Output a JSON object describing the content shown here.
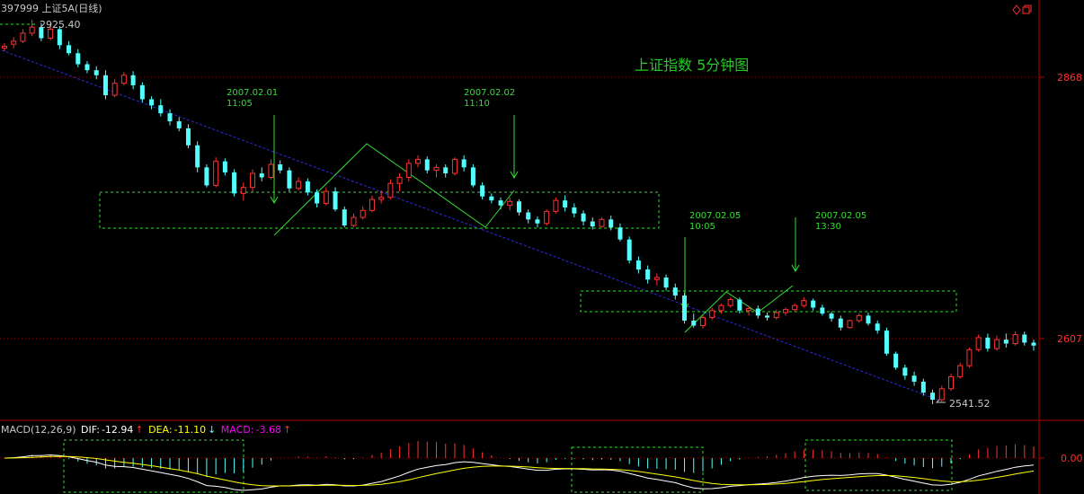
{
  "header": {
    "title": "397999 上证5A(日线)",
    "max_label": "2925.40",
    "min_label": "2541.52",
    "chart_title": "上证指数 5分钟图"
  },
  "price_axis": {
    "top_label": "2868",
    "bottom_label": "2607"
  },
  "macd_axis": {
    "zero_label": "0.00"
  },
  "annotations": [
    {
      "date": "2007.02.01",
      "time": "11:05"
    },
    {
      "date": "2007.02.02",
      "time": "11:10"
    },
    {
      "date": "2007.02.05",
      "time": "10:05"
    },
    {
      "date": "2007.02.05",
      "time": "13:30"
    }
  ],
  "macd": {
    "label": "MACD(12,26,9)",
    "dif_label": "DIF:",
    "dif_value": "-12.94",
    "dea_label": "DEA:",
    "dea_value": "-11.10",
    "macd_label": "MACD:",
    "macd_value": "-3.68"
  },
  "colors": {
    "up": "#ff3232",
    "down": "#54ffff",
    "grid": "#8b0000",
    "ann": "#33dd33",
    "trend": "#2222cc",
    "dif": "#ffffff",
    "dea": "#ffff00",
    "macd_text": "#ff00ff"
  },
  "chart_data": {
    "type": "candlestick",
    "title": "上证指数 5分钟图",
    "ylim": [
      2541.52,
      2925.4
    ],
    "y_ticks": [
      2868,
      2607
    ],
    "series": [
      {
        "values": [
          [
            2897,
            2902,
            2894,
            2899
          ],
          [
            2901,
            2908,
            2897,
            2904
          ],
          [
            2904,
            2916,
            2902,
            2912
          ],
          [
            2912,
            2925.4,
            2909,
            2918
          ],
          [
            2918,
            2922,
            2904,
            2907
          ],
          [
            2907,
            2920,
            2905,
            2916
          ],
          [
            2916,
            2919,
            2896,
            2900
          ],
          [
            2900,
            2904,
            2890,
            2892
          ],
          [
            2892,
            2896,
            2878,
            2881
          ],
          [
            2881,
            2884,
            2872,
            2875
          ],
          [
            2875,
            2879,
            2866,
            2870
          ],
          [
            2870,
            2875,
            2846,
            2850
          ],
          [
            2850,
            2866,
            2848,
            2862
          ],
          [
            2862,
            2873,
            2860,
            2870
          ],
          [
            2870,
            2874,
            2856,
            2860
          ],
          [
            2860,
            2863,
            2843,
            2846
          ],
          [
            2846,
            2849,
            2836,
            2840
          ],
          [
            2840,
            2846,
            2829,
            2832
          ],
          [
            2832,
            2836,
            2820,
            2824
          ],
          [
            2824,
            2828,
            2814,
            2817
          ],
          [
            2817,
            2821,
            2797,
            2800
          ],
          [
            2800,
            2804,
            2773,
            2778
          ],
          [
            2778,
            2781,
            2758,
            2760
          ],
          [
            2760,
            2788,
            2758,
            2784
          ],
          [
            2784,
            2787,
            2770,
            2773
          ],
          [
            2773,
            2776,
            2749,
            2752
          ],
          [
            2752,
            2763,
            2745,
            2758
          ],
          [
            2758,
            2776,
            2754,
            2772
          ],
          [
            2772,
            2778,
            2764,
            2768
          ],
          [
            2768,
            2786,
            2766,
            2781
          ],
          [
            2781,
            2785,
            2772,
            2775
          ],
          [
            2775,
            2778,
            2754,
            2757
          ],
          [
            2757,
            2768,
            2755,
            2764
          ],
          [
            2764,
            2767,
            2750,
            2753
          ],
          [
            2753,
            2756,
            2738,
            2742
          ],
          [
            2742,
            2758,
            2740,
            2754
          ],
          [
            2754,
            2758,
            2734,
            2736
          ],
          [
            2736,
            2739,
            2718,
            2720
          ],
          [
            2720,
            2732,
            2718,
            2728
          ],
          [
            2728,
            2739,
            2726,
            2735
          ],
          [
            2735,
            2750,
            2733,
            2746
          ],
          [
            2746,
            2755,
            2742,
            2748
          ],
          [
            2748,
            2766,
            2746,
            2762
          ],
          [
            2762,
            2772,
            2754,
            2768
          ],
          [
            2768,
            2786,
            2764,
            2782
          ],
          [
            2782,
            2790,
            2778,
            2786
          ],
          [
            2786,
            2789,
            2772,
            2775
          ],
          [
            2775,
            2781,
            2768,
            2778
          ],
          [
            2778,
            2781,
            2768,
            2772
          ],
          [
            2772,
            2788,
            2770,
            2786
          ],
          [
            2786,
            2790,
            2774,
            2778
          ],
          [
            2778,
            2781,
            2758,
            2760
          ],
          [
            2760,
            2763,
            2746,
            2749
          ],
          [
            2749,
            2752,
            2742,
            2745
          ],
          [
            2745,
            2748,
            2736,
            2740
          ],
          [
            2740,
            2748,
            2735,
            2744
          ],
          [
            2744,
            2746,
            2730,
            2733
          ],
          [
            2733,
            2736,
            2722,
            2726
          ],
          [
            2726,
            2729,
            2718,
            2722
          ],
          [
            2722,
            2736,
            2720,
            2734
          ],
          [
            2734,
            2748,
            2732,
            2745
          ],
          [
            2745,
            2750,
            2734,
            2738
          ],
          [
            2738,
            2742,
            2728,
            2732
          ],
          [
            2732,
            2735,
            2720,
            2724
          ],
          [
            2724,
            2728,
            2716,
            2719
          ],
          [
            2719,
            2728,
            2718,
            2726
          ],
          [
            2726,
            2730,
            2715,
            2718
          ],
          [
            2718,
            2722,
            2704,
            2706
          ],
          [
            2706,
            2709,
            2682,
            2685
          ],
          [
            2685,
            2689,
            2672,
            2676
          ],
          [
            2676,
            2680,
            2662,
            2666
          ],
          [
            2666,
            2672,
            2660,
            2668
          ],
          [
            2668,
            2671,
            2655,
            2658
          ],
          [
            2658,
            2662,
            2646,
            2650
          ],
          [
            2650,
            2653,
            2622,
            2625
          ],
          [
            2625,
            2632,
            2618,
            2620
          ],
          [
            2620,
            2630,
            2617,
            2628
          ],
          [
            2628,
            2638,
            2626,
            2635
          ],
          [
            2635,
            2642,
            2632,
            2640
          ],
          [
            2640,
            2648,
            2638,
            2646
          ],
          [
            2646,
            2648,
            2632,
            2635
          ],
          [
            2635,
            2640,
            2630,
            2637
          ],
          [
            2637,
            2640,
            2627,
            2630
          ],
          [
            2630,
            2633,
            2625,
            2628
          ],
          [
            2628,
            2636,
            2626,
            2633
          ],
          [
            2633,
            2638,
            2630,
            2636
          ],
          [
            2636,
            2642,
            2634,
            2640
          ],
          [
            2640,
            2648,
            2638,
            2645
          ],
          [
            2645,
            2647,
            2635,
            2638
          ],
          [
            2638,
            2641,
            2630,
            2632
          ],
          [
            2632,
            2634,
            2624,
            2627
          ],
          [
            2627,
            2630,
            2615,
            2618
          ],
          [
            2618,
            2626,
            2617,
            2625
          ],
          [
            2625,
            2632,
            2623,
            2630
          ],
          [
            2630,
            2633,
            2620,
            2622
          ],
          [
            2622,
            2625,
            2612,
            2615
          ],
          [
            2615,
            2618,
            2590,
            2592
          ],
          [
            2592,
            2594,
            2576,
            2578
          ],
          [
            2578,
            2581,
            2566,
            2570
          ],
          [
            2570,
            2574,
            2560,
            2564
          ],
          [
            2564,
            2567,
            2550,
            2553
          ],
          [
            2553,
            2556,
            2541.52,
            2546
          ],
          [
            2546,
            2560,
            2544,
            2557
          ],
          [
            2557,
            2572,
            2555,
            2569
          ],
          [
            2569,
            2583,
            2567,
            2580
          ],
          [
            2580,
            2598,
            2578,
            2596
          ],
          [
            2596,
            2611,
            2594,
            2608
          ],
          [
            2608,
            2612,
            2594,
            2597
          ],
          [
            2597,
            2610,
            2595,
            2606
          ],
          [
            2606,
            2612,
            2598,
            2602
          ],
          [
            2602,
            2614,
            2600,
            2611
          ],
          [
            2611,
            2614,
            2600,
            2603
          ],
          [
            2603,
            2606,
            2595,
            2600
          ]
        ]
      }
    ]
  }
}
